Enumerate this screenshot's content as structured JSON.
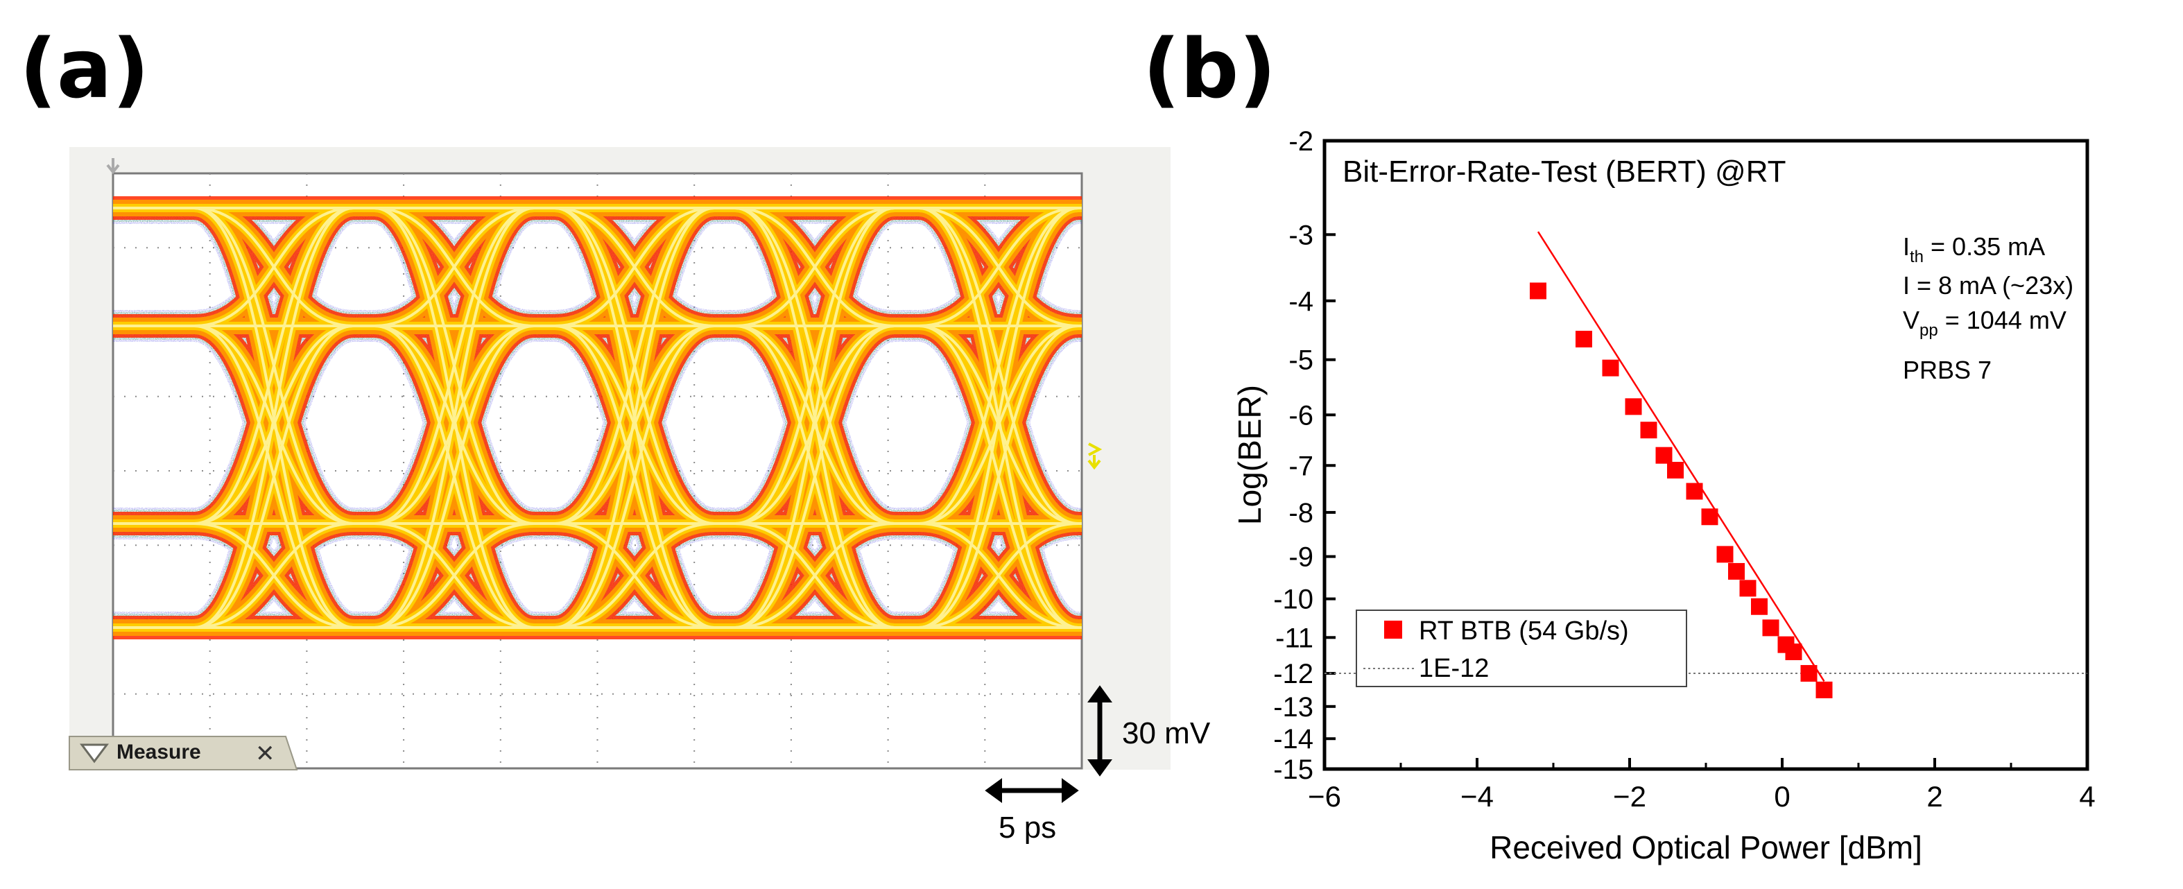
{
  "panel_a": {
    "label": "(a)",
    "measure_label": "Measure",
    "measure_close": "✕",
    "scale_voltage": "30 mV",
    "scale_time": "5 ps",
    "colors": {
      "outer": "#ff2a00",
      "mid": "#ff9c00",
      "inner": "#ffd400",
      "core": "#fff6a0",
      "edge_green": "#22c01a",
      "edge_blue": "#3a36e0",
      "edge_purple": "#a020a0",
      "grid": "#8a8a8a",
      "screen_bg": "#ffffff",
      "tab_bg": "#d9d6c5"
    }
  },
  "panel_b": {
    "label": "(b)",
    "annotations": {
      "ith_main": "I",
      "ith_sub": "th",
      "ith_rest": " = 0.35 mA",
      "current": "I = 8 mA (~23x)",
      "vpp_main": "V",
      "vpp_sub": "pp",
      "vpp_rest": " = 1044 mV",
      "prbs": "PRBS 7"
    }
  },
  "chart_data": [
    {
      "type": "eye-diagram",
      "title": "",
      "description_units": {
        "vertical_scale_per_div": "30 mV",
        "horizontal_scale_per_div": "5 ps"
      },
      "grid_divisions": {
        "x": 10,
        "y": 8
      }
    },
    {
      "type": "scatter",
      "title": "Bit-Error-Rate-Test (BERT) @RT",
      "xlabel": "Received Optical Power [dBm]",
      "ylabel": "Log(BER)",
      "xlim": [
        -6,
        4
      ],
      "ylim": [
        -15,
        -2
      ],
      "xticks": [
        -6,
        -4,
        -2,
        0,
        2,
        4
      ],
      "yticks": [
        -15,
        -14,
        -13,
        -12,
        -11,
        -10,
        -9,
        -8,
        -7,
        -6,
        -5,
        -4,
        -3,
        -2
      ],
      "y_scale": "log(BER) nonlinear (compressed toward -15)",
      "series": [
        {
          "name": "RT BTB (54 Gb/s)",
          "color": "#ff0000",
          "marker": "square",
          "x": [
            -3.2,
            -2.6,
            -2.25,
            -1.95,
            -1.75,
            -1.55,
            -1.4,
            -1.15,
            -0.95,
            -0.75,
            -0.6,
            -0.45,
            -0.3,
            -0.15,
            0.05,
            0.15,
            0.35,
            0.55
          ],
          "y": [
            -3.85,
            -4.65,
            -5.15,
            -5.85,
            -6.3,
            -6.8,
            -7.1,
            -7.55,
            -8.1,
            -8.95,
            -9.35,
            -9.75,
            -10.2,
            -10.75,
            -11.2,
            -11.4,
            -12.0,
            -12.5
          ]
        },
        {
          "name": "1E-12",
          "color": "#777777",
          "style": "dotted",
          "y": [
            -12
          ]
        }
      ],
      "legend_placement": "lower-left"
    }
  ]
}
